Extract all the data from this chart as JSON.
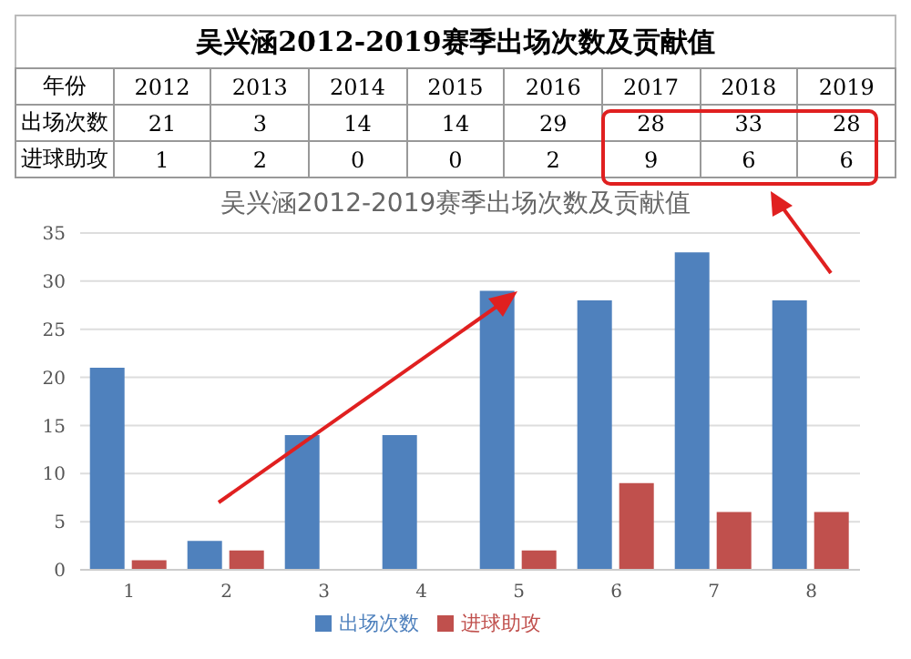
{
  "chart_data": {
    "type": "bar",
    "title": "吴兴涵2012-2019赛季出场次数及贡献值",
    "subtitle": "吴兴涵2012-2019赛季出场次数及贡献值",
    "categories": [
      "1",
      "2",
      "3",
      "4",
      "5",
      "6",
      "7",
      "8"
    ],
    "annotations": [
      "年份",
      "2012",
      "2013",
      "2014",
      "2015",
      "2016",
      "2017",
      "2018",
      "2019"
    ],
    "series": [
      {
        "name": "出场次数",
        "color": "#4f81bd",
        "values": [
          21,
          3,
          14,
          14,
          29,
          28,
          33,
          28
        ]
      },
      {
        "name": "进球助攻",
        "color": "#c0504d",
        "values": [
          1,
          2,
          0,
          0,
          2,
          9,
          6,
          6
        ]
      }
    ],
    "ylim": [
      0,
      35
    ],
    "yticks": [
      0,
      5,
      10,
      15,
      20,
      25,
      30,
      35
    ],
    "grid": "y",
    "legend": "bottom",
    "data_labels": true
  }
}
